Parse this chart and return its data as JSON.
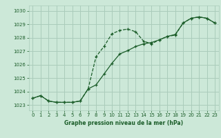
{
  "title": "Graphe pression niveau de la mer (hPa)",
  "bg_color": "#cce8d8",
  "grid_color": "#aaccbb",
  "line_color": "#1a5c28",
  "xlim": [
    -0.5,
    23.5
  ],
  "ylim": [
    1022.6,
    1030.4
  ],
  "yticks": [
    1023,
    1024,
    1025,
    1026,
    1027,
    1028,
    1029,
    1030
  ],
  "xticks": [
    0,
    1,
    2,
    3,
    4,
    5,
    6,
    7,
    8,
    9,
    10,
    11,
    12,
    13,
    14,
    15,
    16,
    17,
    18,
    19,
    20,
    21,
    22,
    23
  ],
  "series1_x": [
    0,
    1,
    2,
    3,
    4,
    5,
    6,
    7,
    8,
    9,
    10,
    11,
    12,
    13,
    14,
    15,
    16,
    17,
    18,
    19,
    20,
    21,
    22,
    23
  ],
  "series1_y": [
    1023.5,
    1023.7,
    1023.3,
    1023.2,
    1023.2,
    1023.2,
    1023.3,
    1024.2,
    1026.6,
    1027.35,
    1028.3,
    1028.55,
    1028.65,
    1028.45,
    1027.75,
    1027.55,
    1027.85,
    1028.1,
    1028.2,
    1029.1,
    1029.45,
    1029.55,
    1029.45,
    1029.1
  ],
  "series2_x": [
    0,
    1,
    2,
    3,
    4,
    5,
    6,
    7,
    8,
    9,
    10,
    11,
    12,
    13,
    14,
    15,
    16,
    17,
    18,
    19,
    20,
    21,
    22,
    23
  ],
  "series2_y": [
    1023.5,
    1023.7,
    1023.3,
    1023.2,
    1023.2,
    1023.2,
    1023.3,
    1024.2,
    1024.5,
    1025.3,
    1026.1,
    1026.8,
    1027.05,
    1027.35,
    1027.55,
    1027.65,
    1027.85,
    1028.1,
    1028.25,
    1029.1,
    1029.45,
    1029.55,
    1029.45,
    1029.1
  ],
  "tick_fontsize": 5,
  "label_fontsize": 5.5
}
